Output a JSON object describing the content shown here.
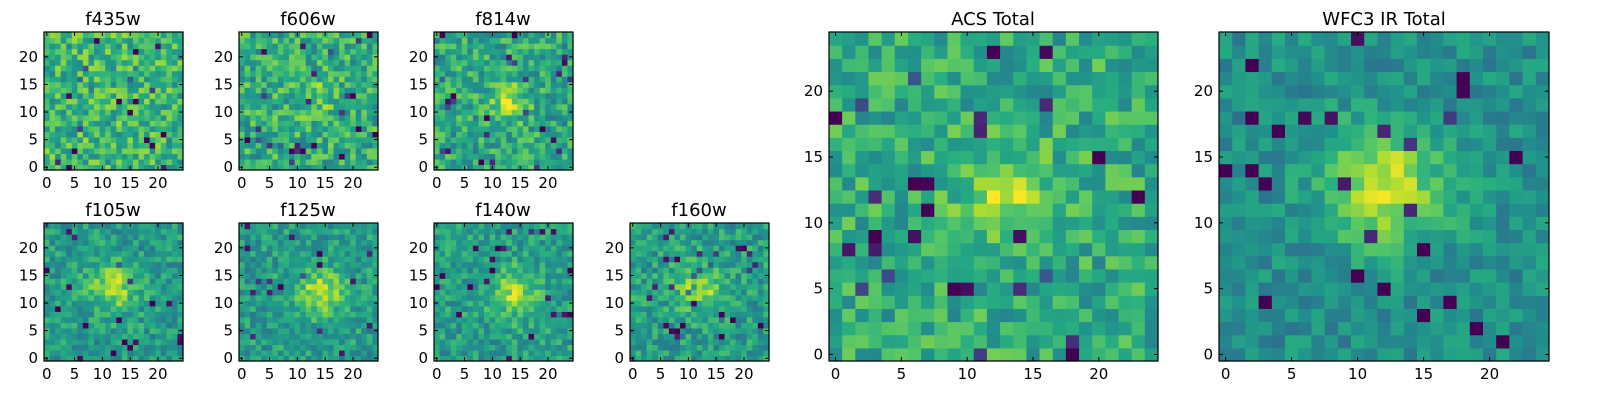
{
  "figure": {
    "panel_titles": [
      "f435w",
      "f606w",
      "f814w",
      "f105w",
      "f125w",
      "f140w",
      "f160w",
      "ACS Total",
      "WFC3 IR Total"
    ]
  },
  "chart_data": [
    {
      "type": "heatmap",
      "title": "f435w",
      "xlabel": "",
      "ylabel": "",
      "grid_size": [
        25,
        25
      ],
      "colormap": "viridis",
      "origin": "lower",
      "x_ticks": [
        0,
        5,
        10,
        15,
        20
      ],
      "y_ticks": [
        0,
        5,
        10,
        15,
        20
      ],
      "xlim": [
        -0.5,
        24.5
      ],
      "ylim": [
        -0.5,
        24.5
      ],
      "grid": false,
      "peak": [
        12,
        12
      ],
      "peak_strength": 0.0,
      "peak_width": 3.0,
      "base_level": 0.66,
      "noise_level": 0.42
    },
    {
      "type": "heatmap",
      "title": "f606w",
      "xlabel": "",
      "ylabel": "",
      "grid_size": [
        25,
        25
      ],
      "colormap": "viridis",
      "origin": "lower",
      "x_ticks": [
        0,
        5,
        10,
        15,
        20
      ],
      "y_ticks": [
        0,
        5,
        10,
        15,
        20
      ],
      "xlim": [
        -0.5,
        24.5
      ],
      "ylim": [
        -0.5,
        24.5
      ],
      "grid": false,
      "peak": [
        13,
        13
      ],
      "peak_strength": 0.15,
      "peak_width": 2.6,
      "base_level": 0.62,
      "noise_level": 0.4
    },
    {
      "type": "heatmap",
      "title": "f814w",
      "xlabel": "",
      "ylabel": "",
      "grid_size": [
        25,
        25
      ],
      "colormap": "viridis",
      "origin": "lower",
      "x_ticks": [
        0,
        5,
        10,
        15,
        20
      ],
      "y_ticks": [
        0,
        5,
        10,
        15,
        20
      ],
      "xlim": [
        -0.5,
        24.5
      ],
      "ylim": [
        -0.5,
        24.5
      ],
      "grid": false,
      "peak": [
        13,
        12
      ],
      "peak_strength": 0.25,
      "peak_width": 2.4,
      "base_level": 0.6,
      "noise_level": 0.38
    },
    {
      "type": "heatmap",
      "title": "f105w",
      "xlabel": "",
      "ylabel": "",
      "grid_size": [
        25,
        25
      ],
      "colormap": "viridis",
      "origin": "lower",
      "x_ticks": [
        0,
        5,
        10,
        15,
        20
      ],
      "y_ticks": [
        0,
        5,
        10,
        15,
        20
      ],
      "xlim": [
        -0.5,
        24.5
      ],
      "ylim": [
        -0.5,
        24.5
      ],
      "grid": false,
      "peak": [
        12,
        13
      ],
      "peak_strength": 0.32,
      "peak_width": 3.0,
      "base_level": 0.55,
      "noise_level": 0.3
    },
    {
      "type": "heatmap",
      "title": "f125w",
      "xlabel": "",
      "ylabel": "",
      "grid_size": [
        25,
        25
      ],
      "colormap": "viridis",
      "origin": "lower",
      "x_ticks": [
        0,
        5,
        10,
        15,
        20
      ],
      "y_ticks": [
        0,
        5,
        10,
        15,
        20
      ],
      "xlim": [
        -0.5,
        24.5
      ],
      "ylim": [
        -0.5,
        24.5
      ],
      "grid": false,
      "peak": [
        14,
        12
      ],
      "peak_strength": 0.35,
      "peak_width": 3.0,
      "base_level": 0.55,
      "noise_level": 0.3
    },
    {
      "type": "heatmap",
      "title": "f140w",
      "xlabel": "",
      "ylabel": "",
      "grid_size": [
        25,
        25
      ],
      "colormap": "viridis",
      "origin": "lower",
      "x_ticks": [
        0,
        5,
        10,
        15,
        20
      ],
      "y_ticks": [
        0,
        5,
        10,
        15,
        20
      ],
      "xlim": [
        -0.5,
        24.5
      ],
      "ylim": [
        -0.5,
        24.5
      ],
      "grid": false,
      "peak": [
        14,
        12
      ],
      "peak_strength": 0.3,
      "peak_width": 3.0,
      "base_level": 0.56,
      "noise_level": 0.3
    },
    {
      "type": "heatmap",
      "title": "f160w",
      "xlabel": "",
      "ylabel": "",
      "grid_size": [
        25,
        25
      ],
      "colormap": "viridis",
      "origin": "lower",
      "x_ticks": [
        0,
        5,
        10,
        15,
        20
      ],
      "y_ticks": [
        0,
        5,
        10,
        15,
        20
      ],
      "xlim": [
        -0.5,
        24.5
      ],
      "ylim": [
        -0.5,
        24.5
      ],
      "grid": false,
      "peak": [
        12,
        13
      ],
      "peak_strength": 0.32,
      "peak_width": 2.8,
      "base_level": 0.56,
      "noise_level": 0.32
    },
    {
      "type": "heatmap",
      "title": "ACS Total",
      "xlabel": "",
      "ylabel": "",
      "grid_size": [
        25,
        25
      ],
      "colormap": "viridis",
      "origin": "lower",
      "x_ticks": [
        0,
        5,
        10,
        15,
        20
      ],
      "y_ticks": [
        0,
        5,
        10,
        15,
        20
      ],
      "xlim": [
        -0.5,
        24.5
      ],
      "ylim": [
        -0.5,
        24.5
      ],
      "grid": false,
      "peak": [
        13,
        12
      ],
      "peak_strength": 0.25,
      "peak_width": 2.6,
      "base_level": 0.62,
      "noise_level": 0.34
    },
    {
      "type": "heatmap",
      "title": "WFC3 IR Total",
      "xlabel": "",
      "ylabel": "",
      "grid_size": [
        25,
        25
      ],
      "colormap": "viridis",
      "origin": "lower",
      "x_ticks": [
        0,
        5,
        10,
        15,
        20
      ],
      "y_ticks": [
        0,
        5,
        10,
        15,
        20
      ],
      "xlim": [
        -0.5,
        24.5
      ],
      "ylim": [
        -0.5,
        24.5
      ],
      "grid": false,
      "peak": [
        12,
        13
      ],
      "peak_strength": 0.42,
      "peak_width": 3.2,
      "base_level": 0.5,
      "noise_level": 0.24
    }
  ]
}
